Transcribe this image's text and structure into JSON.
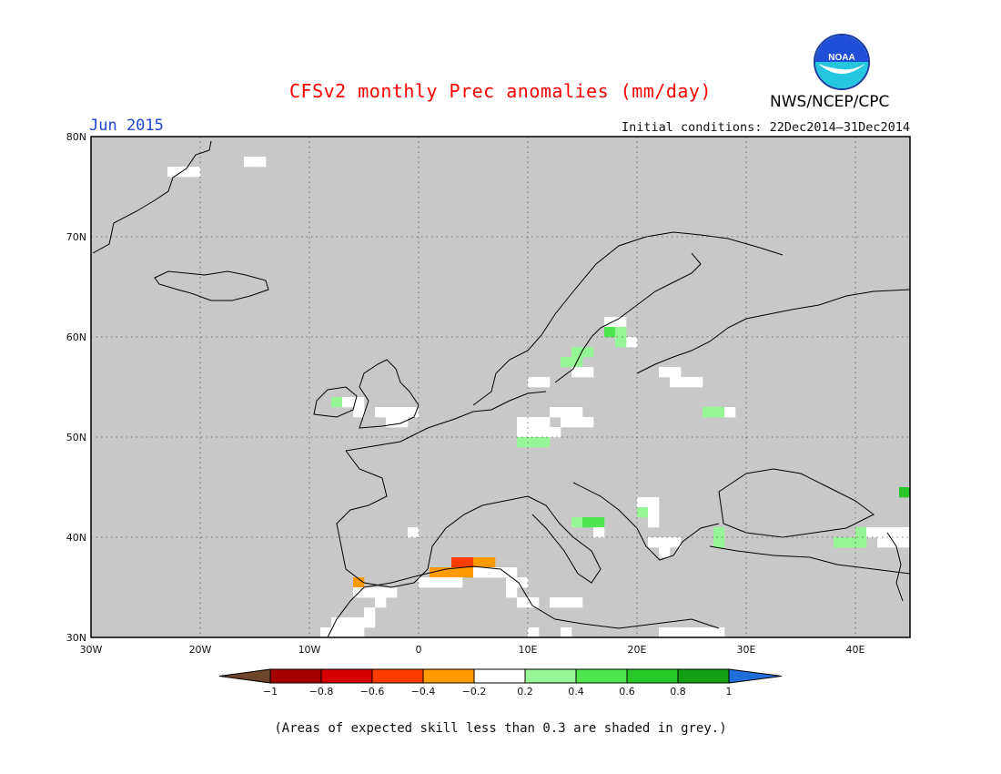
{
  "title": "CFSv2 monthly Prec anomalies (mm/day)",
  "valid_month": "Jun 2015",
  "initial_conditions": "Initial conditions: 22Dec2014–31Dec2014",
  "agency": "NWS/NCEP/CPC",
  "logo_text": "NOAA",
  "footnote": "(Areas of expected skill less than 0.3 are shaded in grey.)",
  "colors": {
    "title": "#ff0000",
    "month": "#1e46d2",
    "skill_mask": "#c8c8c8"
  },
  "axes": {
    "x_ticks": [
      "30W",
      "20W",
      "10W",
      "0",
      "10E",
      "20E",
      "30E",
      "40E"
    ],
    "y_ticks": [
      "30N",
      "40N",
      "50N",
      "60N",
      "70N",
      "80N"
    ],
    "lon_range": [
      -30,
      45
    ],
    "lat_range": [
      30,
      80
    ]
  },
  "colorbar": {
    "labels": [
      "−1",
      "−0.8",
      "−0.6",
      "−0.4",
      "−0.2",
      "0.2",
      "0.4",
      "0.6",
      "0.8",
      "1"
    ],
    "colors": [
      "#6e4428",
      "#a50000",
      "#d70000",
      "#ff3c00",
      "#ff9b00",
      "#ffffff",
      "#96f596",
      "#50e650",
      "#28c828",
      "#14a014",
      "#1e6edc"
    ]
  },
  "chart_data": {
    "type": "heatmap",
    "variable": "precipitation anomaly (mm/day)",
    "cells": [
      {
        "lon": -23,
        "lat": 76,
        "value": 0.0
      },
      {
        "lon": -22,
        "lat": 76,
        "value": 0.0
      },
      {
        "lon": -21,
        "lat": 76,
        "value": 0.0
      },
      {
        "lon": -16,
        "lat": 77,
        "value": 0.0
      },
      {
        "lon": -15,
        "lat": 77,
        "value": 0.0
      },
      {
        "lon": -8,
        "lat": 53,
        "value": 0.3
      },
      {
        "lon": -7,
        "lat": 53,
        "value": 0.0
      },
      {
        "lon": -6,
        "lat": 52,
        "value": 0.0
      },
      {
        "lon": -6,
        "lat": 53,
        "value": 0.0
      },
      {
        "lon": -4,
        "lat": 52,
        "value": 0.0
      },
      {
        "lon": -3,
        "lat": 52,
        "value": 0.0
      },
      {
        "lon": -2,
        "lat": 52,
        "value": 0.0
      },
      {
        "lon": -1,
        "lat": 52,
        "value": 0.0
      },
      {
        "lon": -3,
        "lat": 51,
        "value": 0.0
      },
      {
        "lon": -2,
        "lat": 51,
        "value": 0.0
      },
      {
        "lon": -1,
        "lat": 40,
        "value": 0.0
      },
      {
        "lon": -6,
        "lat": 35,
        "value": -0.3
      },
      {
        "lon": -6,
        "lat": 34,
        "value": 0.0
      },
      {
        "lon": -5,
        "lat": 34,
        "value": 0.0
      },
      {
        "lon": -4,
        "lat": 34,
        "value": 0.0
      },
      {
        "lon": -3,
        "lat": 34,
        "value": 0.0
      },
      {
        "lon": -4,
        "lat": 33,
        "value": 0.0
      },
      {
        "lon": -5,
        "lat": 32,
        "value": 0.0
      },
      {
        "lon": -6,
        "lat": 31,
        "value": 0.0
      },
      {
        "lon": -7,
        "lat": 31,
        "value": 0.0
      },
      {
        "lon": -5,
        "lat": 31,
        "value": 0.0
      },
      {
        "lon": -8,
        "lat": 30,
        "value": 0.0
      },
      {
        "lon": -7,
        "lat": 30,
        "value": 0.0
      },
      {
        "lon": -6,
        "lat": 30,
        "value": 0.0
      },
      {
        "lon": 1,
        "lat": 36,
        "value": -0.3
      },
      {
        "lon": 2,
        "lat": 36,
        "value": -0.3
      },
      {
        "lon": 3,
        "lat": 37,
        "value": -0.5
      },
      {
        "lon": 4,
        "lat": 37,
        "value": -0.5
      },
      {
        "lon": 5,
        "lat": 37,
        "value": -0.3
      },
      {
        "lon": 6,
        "lat": 37,
        "value": -0.3
      },
      {
        "lon": 3,
        "lat": 36,
        "value": -0.3
      },
      {
        "lon": 4,
        "lat": 36,
        "value": -0.3
      },
      {
        "lon": 5,
        "lat": 36,
        "value": 0.0
      },
      {
        "lon": 6,
        "lat": 36,
        "value": 0.0
      },
      {
        "lon": 7,
        "lat": 36,
        "value": 0.0
      },
      {
        "lon": 8,
        "lat": 36,
        "value": 0.0
      },
      {
        "lon": 0,
        "lat": 35,
        "value": 0.0
      },
      {
        "lon": 1,
        "lat": 35,
        "value": 0.0
      },
      {
        "lon": 2,
        "lat": 35,
        "value": 0.0
      },
      {
        "lon": 3,
        "lat": 35,
        "value": 0.0
      },
      {
        "lon": 8,
        "lat": 35,
        "value": 0.0
      },
      {
        "lon": 9,
        "lat": 35,
        "value": 0.0
      },
      {
        "lon": 8,
        "lat": 34,
        "value": 0.0
      },
      {
        "lon": 9,
        "lat": 33,
        "value": 0.0
      },
      {
        "lon": 10,
        "lat": 33,
        "value": 0.0
      },
      {
        "lon": 12,
        "lat": 33,
        "value": 0.0
      },
      {
        "lon": 13,
        "lat": 33,
        "value": 0.0
      },
      {
        "lon": 14,
        "lat": 33,
        "value": 0.0
      },
      {
        "lon": 10,
        "lat": 30,
        "value": 0.0
      },
      {
        "lon": 9,
        "lat": 51,
        "value": 0.0
      },
      {
        "lon": 10,
        "lat": 51,
        "value": 0.0
      },
      {
        "lon": 11,
        "lat": 51,
        "value": 0.0
      },
      {
        "lon": 12,
        "lat": 52,
        "value": 0.0
      },
      {
        "lon": 13,
        "lat": 52,
        "value": 0.0
      },
      {
        "lon": 14,
        "lat": 52,
        "value": 0.0
      },
      {
        "lon": 15,
        "lat": 51,
        "value": 0.0
      },
      {
        "lon": 9,
        "lat": 50,
        "value": 0.0
      },
      {
        "lon": 10,
        "lat": 50,
        "value": 0.0
      },
      {
        "lon": 11,
        "lat": 50,
        "value": 0.0
      },
      {
        "lon": 12,
        "lat": 50,
        "value": 0.0
      },
      {
        "lon": 13,
        "lat": 51,
        "value": 0.0
      },
      {
        "lon": 14,
        "lat": 51,
        "value": 0.0
      },
      {
        "lon": 9,
        "lat": 49,
        "value": 0.3
      },
      {
        "lon": 10,
        "lat": 49,
        "value": 0.3
      },
      {
        "lon": 11,
        "lat": 49,
        "value": 0.3
      },
      {
        "lon": 10,
        "lat": 55,
        "value": 0.0
      },
      {
        "lon": 11,
        "lat": 55,
        "value": 0.0
      },
      {
        "lon": 13,
        "lat": 57,
        "value": 0.3
      },
      {
        "lon": 14,
        "lat": 57,
        "value": 0.3
      },
      {
        "lon": 15,
        "lat": 58,
        "value": 0.3
      },
      {
        "lon": 14,
        "lat": 58,
        "value": 0.3
      },
      {
        "lon": 15,
        "lat": 56,
        "value": 0.0
      },
      {
        "lon": 14,
        "lat": 56,
        "value": 0.0
      },
      {
        "lon": 17,
        "lat": 61,
        "value": 0.0
      },
      {
        "lon": 18,
        "lat": 61,
        "value": 0.0
      },
      {
        "lon": 17,
        "lat": 60,
        "value": 0.5
      },
      {
        "lon": 18,
        "lat": 60,
        "value": 0.3
      },
      {
        "lon": 19,
        "lat": 59,
        "value": 0.0
      },
      {
        "lon": 18,
        "lat": 59,
        "value": 0.3
      },
      {
        "lon": 22,
        "lat": 56,
        "value": 0.0
      },
      {
        "lon": 23,
        "lat": 56,
        "value": 0.0
      },
      {
        "lon": 23,
        "lat": 55,
        "value": 0.0
      },
      {
        "lon": 24,
        "lat": 55,
        "value": 0.0
      },
      {
        "lon": 25,
        "lat": 55,
        "value": 0.0
      },
      {
        "lon": 26,
        "lat": 52,
        "value": 0.3
      },
      {
        "lon": 27,
        "lat": 52,
        "value": 0.3
      },
      {
        "lon": 28,
        "lat": 52,
        "value": 0.0
      },
      {
        "lon": 14,
        "lat": 41,
        "value": 0.3
      },
      {
        "lon": 15,
        "lat": 41,
        "value": 0.5
      },
      {
        "lon": 16,
        "lat": 41,
        "value": 0.5
      },
      {
        "lon": 16,
        "lat": 40,
        "value": 0.0
      },
      {
        "lon": 20,
        "lat": 43,
        "value": 0.0
      },
      {
        "lon": 21,
        "lat": 43,
        "value": 0.0
      },
      {
        "lon": 20,
        "lat": 42,
        "value": 0.3
      },
      {
        "lon": 21,
        "lat": 42,
        "value": 0.0
      },
      {
        "lon": 21,
        "lat": 41,
        "value": 0.0
      },
      {
        "lon": 21,
        "lat": 39,
        "value": 0.0
      },
      {
        "lon": 22,
        "lat": 39,
        "value": 0.0
      },
      {
        "lon": 23,
        "lat": 39,
        "value": 0.0
      },
      {
        "lon": 22,
        "lat": 38,
        "value": 0.0
      },
      {
        "lon": 27,
        "lat": 40,
        "value": 0.3
      },
      {
        "lon": 27,
        "lat": 39,
        "value": 0.3
      },
      {
        "lon": 38,
        "lat": 39,
        "value": 0.3
      },
      {
        "lon": 39,
        "lat": 39,
        "value": 0.3
      },
      {
        "lon": 40,
        "lat": 39,
        "value": 0.3
      },
      {
        "lon": 40,
        "lat": 40,
        "value": 0.3
      },
      {
        "lon": 41,
        "lat": 40,
        "value": 0.0
      },
      {
        "lon": 42,
        "lat": 40,
        "value": 0.0
      },
      {
        "lon": 43,
        "lat": 40,
        "value": 0.0
      },
      {
        "lon": 44,
        "lat": 40,
        "value": 0.0
      },
      {
        "lon": 42,
        "lat": 39,
        "value": 0.0
      },
      {
        "lon": 43,
        "lat": 39,
        "value": 0.0
      },
      {
        "lon": 44,
        "lat": 39,
        "value": 0.0
      },
      {
        "lon": 44,
        "lat": 44,
        "value": 0.7
      },
      {
        "lon": 22,
        "lat": 30,
        "value": 0.0
      },
      {
        "lon": 23,
        "lat": 30,
        "value": 0.0
      },
      {
        "lon": 24,
        "lat": 30,
        "value": 0.0
      },
      {
        "lon": 25,
        "lat": 30,
        "value": 0.0
      },
      {
        "lon": 26,
        "lat": 30,
        "value": 0.0
      },
      {
        "lon": 27,
        "lat": 30,
        "value": 0.0
      },
      {
        "lon": -9,
        "lat": 30,
        "value": 0.0
      },
      {
        "lon": -8,
        "lat": 31,
        "value": 0.0
      },
      {
        "lon": 13,
        "lat": 30,
        "value": 0.0
      }
    ]
  }
}
